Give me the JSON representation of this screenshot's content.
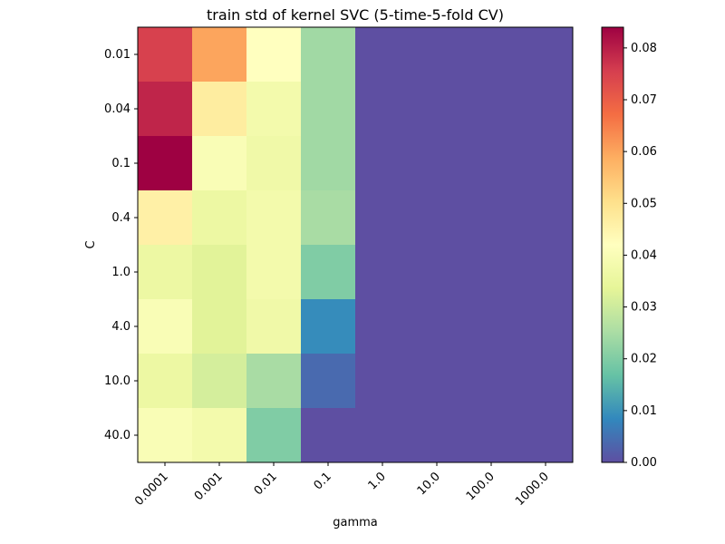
{
  "chart_data": {
    "type": "heatmap",
    "title": "train std of kernel SVC (5-time-5-fold CV)",
    "xlabel": "gamma",
    "ylabel": "C",
    "x_categories": [
      "0.0001",
      "0.001",
      "0.01",
      "0.1",
      "1.0",
      "10.0",
      "100.0",
      "1000.0"
    ],
    "y_categories": [
      "0.01",
      "0.04",
      "0.1",
      "0.4",
      "1.0",
      "4.0",
      "10.0",
      "40.0"
    ],
    "values": [
      [
        0.075,
        0.06,
        0.042,
        0.024,
        0.0,
        0.0,
        0.0,
        0.0
      ],
      [
        0.079,
        0.047,
        0.038,
        0.024,
        0.0,
        0.0,
        0.0,
        0.0
      ],
      [
        0.084,
        0.04,
        0.037,
        0.024,
        0.0,
        0.0,
        0.0,
        0.0
      ],
      [
        0.046,
        0.036,
        0.038,
        0.025,
        0.0,
        0.0,
        0.0,
        0.0
      ],
      [
        0.036,
        0.033,
        0.038,
        0.02,
        0.0,
        0.0,
        0.0,
        0.0
      ],
      [
        0.04,
        0.033,
        0.037,
        0.009,
        0.0,
        0.0,
        0.0,
        0.0
      ],
      [
        0.036,
        0.031,
        0.025,
        0.004,
        0.0,
        0.0,
        0.0,
        0.0
      ],
      [
        0.04,
        0.038,
        0.02,
        0.0,
        0.0,
        0.0,
        0.0,
        0.0
      ]
    ],
    "colormap": "Spectral_r",
    "colorbar": {
      "range": [
        0.0,
        0.084
      ],
      "ticks": [
        "0.00",
        "0.01",
        "0.02",
        "0.03",
        "0.04",
        "0.05",
        "0.06",
        "0.07",
        "0.08"
      ]
    },
    "grid": false,
    "legend": "colorbar-right"
  }
}
